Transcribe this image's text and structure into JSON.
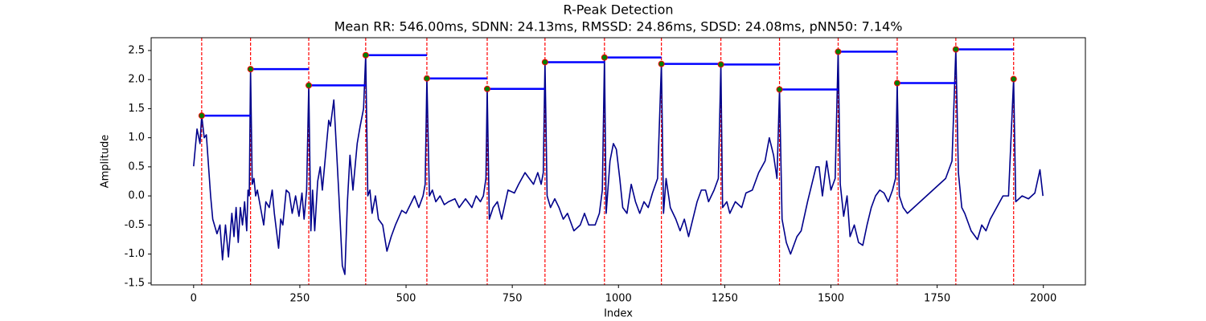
{
  "chart_data": {
    "type": "line",
    "title": "R-Peak Detection",
    "subtitle": "Mean RR: 546.00ms, SDNN: 24.13ms, RMSSD: 24.86ms, SDSD: 24.08ms, pNN50: 7.14%",
    "xlabel": "Index",
    "ylabel": "Amplitude",
    "xlim": [
      -99.95,
      2098.95
    ],
    "ylim": [
      -1.53,
      2.72
    ],
    "xticks": [
      0,
      250,
      500,
      750,
      1000,
      1250,
      1500,
      1750,
      2000
    ],
    "yticks": [
      -1.5,
      {
        "value": -1.0,
        "label": "-1.0"
      },
      -0.5,
      {
        "value": 0,
        "label": "0.0"
      },
      0.5,
      {
        "value": 1.0,
        "label": "1.0"
      },
      1.5,
      {
        "value": 2.0,
        "label": "2.0"
      },
      2.5
    ],
    "series": [
      {
        "color": "#00008b",
        "x": [
          0,
          8,
          15,
          19,
          25,
          30,
          40,
          45,
          55,
          62,
          68,
          75,
          82,
          90,
          95,
          100,
          105,
          110,
          115,
          120,
          125,
          128,
          131,
          134,
          138,
          142,
          146,
          150,
          160,
          165,
          170,
          178,
          185,
          190,
          200,
          205,
          210,
          218,
          225,
          232,
          240,
          248,
          255,
          260,
          266,
          271,
          276,
          280,
          285,
          292,
          298,
          303,
          308,
          318,
          322,
          330,
          337,
          342,
          350,
          356,
          362,
          368,
          375,
          385,
          392,
          400,
          405,
          410,
          415,
          420,
          428,
          435,
          445,
          455,
          465,
          475,
          490,
          500,
          510,
          520,
          530,
          540,
          545,
          549,
          555,
          562,
          570,
          580,
          590,
          600,
          615,
          625,
          640,
          655,
          665,
          675,
          682,
          688,
          691,
          696,
          705,
          715,
          725,
          740,
          755,
          765,
          780,
          790,
          800,
          810,
          818,
          823,
          827,
          832,
          840,
          850,
          860,
          870,
          880,
          895,
          910,
          920,
          930,
          945,
          955,
          962,
          967,
          971,
          980,
          988,
          995,
          1003,
          1010,
          1020,
          1030,
          1040,
          1050,
          1060,
          1070,
          1080,
          1092,
          1101,
          1106,
          1112,
          1122,
          1135,
          1145,
          1155,
          1165,
          1175,
          1185,
          1195,
          1205,
          1212,
          1225,
          1235,
          1241,
          1245,
          1255,
          1262,
          1275,
          1290,
          1300,
          1315,
          1330,
          1345,
          1355,
          1365,
          1373,
          1379,
          1385,
          1395,
          1405,
          1420,
          1430,
          1445,
          1455,
          1465,
          1472,
          1480,
          1490,
          1500,
          1510,
          1517,
          1522,
          1530,
          1538,
          1545,
          1555,
          1565,
          1575,
          1585,
          1595,
          1605,
          1615,
          1625,
          1635,
          1645,
          1652,
          1656,
          1661,
          1670,
          1680,
          1695,
          1710,
          1725,
          1740,
          1755,
          1770,
          1785,
          1794,
          1800,
          1808,
          1815,
          1830,
          1845,
          1855,
          1865,
          1875,
          1890,
          1905,
          1918,
          1930,
          1935,
          1950,
          1965,
          1980,
          1992,
          1999
        ],
        "values": [
          0.51,
          1.15,
          0.9,
          1.38,
          1.0,
          1.05,
          0,
          -0.4,
          -0.65,
          -0.5,
          -1.1,
          -0.5,
          -1.05,
          -0.3,
          -0.7,
          -0.2,
          -0.8,
          -0.2,
          -0.5,
          -0.1,
          -0.6,
          0.1,
          0,
          2.18,
          0.2,
          0.3,
          0,
          0.1,
          -0.3,
          -0.5,
          -0.1,
          -0.2,
          0.1,
          -0.3,
          -0.9,
          -0.4,
          -0.5,
          0.1,
          0.05,
          -0.3,
          0,
          -0.35,
          0.05,
          -0.4,
          0.1,
          1.9,
          -0.6,
          0.1,
          -0.6,
          0.25,
          0.5,
          0.1,
          0.5,
          1.3,
          1.2,
          1.65,
          0.7,
          0,
          -1.2,
          -1.35,
          -0.1,
          0.7,
          0.1,
          0.9,
          1.2,
          1.5,
          2.42,
          0,
          0.1,
          -0.3,
          0,
          -0.4,
          -0.5,
          -0.95,
          -0.7,
          -0.5,
          -0.25,
          -0.3,
          -0.15,
          0,
          -0.2,
          0,
          0.2,
          2.02,
          0,
          0.1,
          -0.1,
          0,
          -0.15,
          -0.1,
          -0.05,
          -0.2,
          -0.05,
          -0.2,
          0,
          -0.1,
          0,
          0.3,
          1.84,
          -0.4,
          -0.2,
          -0.1,
          -0.4,
          0.1,
          0.05,
          0.2,
          0.4,
          0.3,
          0.2,
          0.4,
          0.2,
          0.4,
          2.3,
          0,
          -0.2,
          -0.05,
          -0.2,
          -0.4,
          -0.3,
          -0.6,
          -0.5,
          -0.3,
          -0.5,
          -0.5,
          -0.3,
          0.1,
          2.38,
          -0.3,
          0.6,
          0.9,
          0.8,
          0.3,
          -0.2,
          -0.3,
          0.2,
          -0.1,
          -0.3,
          -0.1,
          -0.2,
          0.05,
          0.3,
          2.27,
          -0.3,
          0.3,
          -0.2,
          -0.4,
          -0.6,
          -0.4,
          -0.7,
          -0.4,
          -0.1,
          0.1,
          0.1,
          -0.1,
          0.1,
          0.3,
          2.26,
          -0.2,
          -0.1,
          -0.3,
          -0.1,
          -0.2,
          0.05,
          0.1,
          0.4,
          0.6,
          1.0,
          0.7,
          0.3,
          1.83,
          -0.4,
          -0.8,
          -1.0,
          -0.7,
          -0.6,
          -0.1,
          0.2,
          0.5,
          0.5,
          0,
          0.6,
          0.1,
          0.3,
          2.48,
          0.2,
          -0.35,
          0,
          -0.7,
          -0.5,
          -0.8,
          -0.85,
          -0.5,
          -0.2,
          0,
          0.1,
          0.05,
          -0.1,
          0.1,
          0.3,
          1.94,
          0,
          -0.2,
          -0.3,
          -0.2,
          -0.1,
          0,
          0.1,
          0.2,
          0.3,
          0.6,
          2.52,
          0.4,
          -0.2,
          -0.3,
          -0.6,
          -0.75,
          -0.5,
          -0.6,
          -0.4,
          -0.2,
          0,
          0,
          2.01,
          -0.1,
          0,
          -0.05,
          0.05,
          0.45,
          0
        ]
      }
    ],
    "peaks": {
      "x": [
        19,
        134,
        271,
        405,
        549,
        691,
        827,
        967,
        1101,
        1241,
        1379,
        1517,
        1656,
        1794,
        1930
      ],
      "values": [
        1.38,
        2.18,
        1.9,
        2.42,
        2.02,
        1.84,
        2.3,
        2.38,
        2.27,
        2.26,
        1.83,
        2.48,
        1.94,
        2.52,
        2.01
      ],
      "color": "#008000",
      "edge_color": "#ff0000",
      "vline_color": "#ff0000",
      "rr_color": "#0000ff"
    }
  }
}
